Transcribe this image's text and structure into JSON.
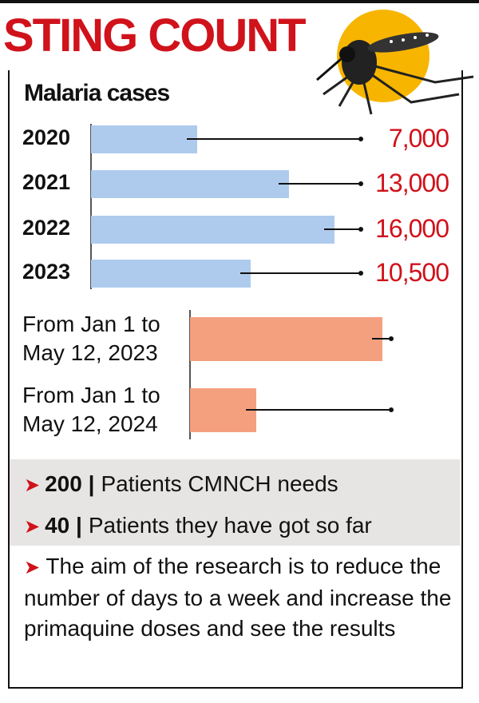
{
  "title": "STING COUNT",
  "chart_data": [
    {
      "type": "bar",
      "orientation": "horizontal",
      "subtitle": "Malaria cases",
      "categories": [
        "2020",
        "2021",
        "2022",
        "2023"
      ],
      "values": [
        7000,
        13000,
        16000,
        10500
      ],
      "value_labels": [
        "7,000",
        "13,000",
        "16,000",
        "10,500"
      ],
      "color": "#aecbee",
      "label_color": "#d0121b"
    },
    {
      "type": "bar",
      "orientation": "horizontal",
      "categories": [
        "From Jan 1 to May 12, 2023",
        "From Jan 1 to May 12, 2024"
      ],
      "values": [
        853,
        294
      ],
      "color": "#f4a07f",
      "label_color": "#111111"
    }
  ],
  "notes": [
    {
      "number": "200 |",
      "text": "Patients CMNCH needs"
    },
    {
      "number": "40 |",
      "text": "Patients they have got so far"
    }
  ],
  "paragraph": "The aim of the research is to reduce the number of days to a week and increase the primaquine doses and see the results"
}
